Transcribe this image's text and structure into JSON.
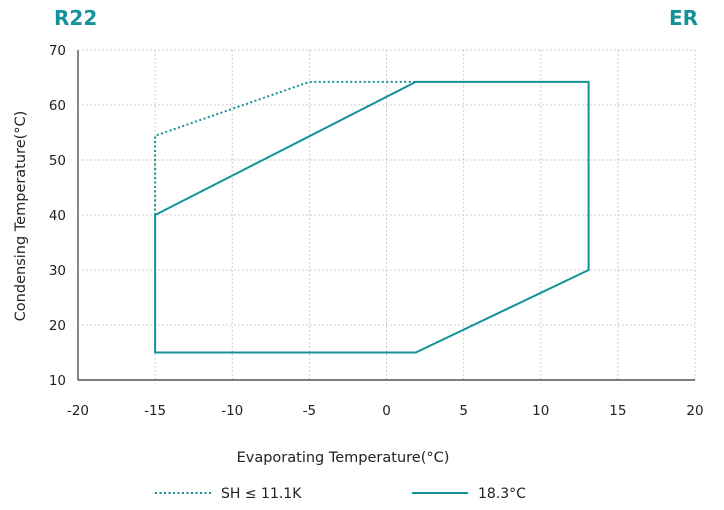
{
  "header": {
    "left": "R22",
    "right": "ER"
  },
  "chart_data": {
    "type": "line",
    "title": "",
    "xlabel": "Evaporating Temperature(°C)",
    "ylabel": "Condensing Temperature(°C)",
    "xlim": [
      -20,
      20
    ],
    "ylim": [
      10,
      70
    ],
    "xticks": [
      "-20",
      "-15",
      "-10",
      "-5",
      "0",
      "5",
      "10",
      "15",
      "20"
    ],
    "yticks": [
      "10",
      "20",
      "30",
      "40",
      "50",
      "60",
      "70"
    ],
    "grid": "dotted",
    "legend_position": "bottom",
    "series": [
      {
        "name": "SH ≤ 11.1K",
        "style": "dotted",
        "color": "#14929a",
        "points": [
          [
            -15,
            40
          ],
          [
            -15,
            54.4
          ],
          [
            -5,
            64.2
          ],
          [
            1.9,
            64.2
          ]
        ]
      },
      {
        "name": "18.3°C",
        "style": "solid",
        "color": "#14929a",
        "points": [
          [
            -15,
            40
          ],
          [
            1.9,
            64.2
          ],
          [
            13.1,
            64.2
          ],
          [
            13.1,
            30
          ],
          [
            1.9,
            15
          ],
          [
            -15,
            15
          ],
          [
            -15,
            40
          ]
        ]
      }
    ]
  }
}
